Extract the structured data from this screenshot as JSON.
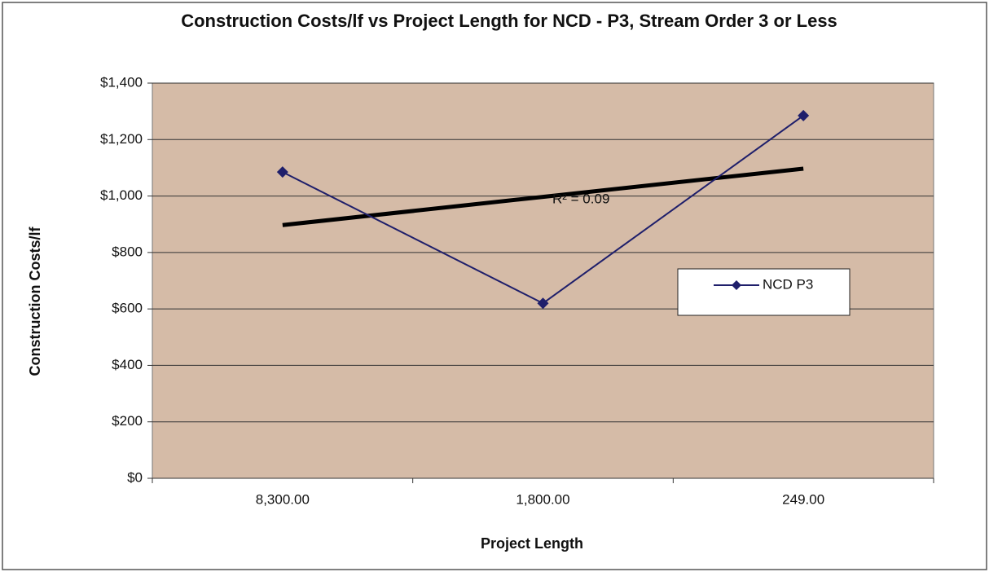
{
  "chart_data": {
    "type": "line",
    "title": "Construction Costs/lf vs Project Length for NCD - P3, Stream Order 3 or Less",
    "x_label": "Project Length",
    "y_label": "Construction Costs/lf",
    "categories": [
      "8,300.00",
      "1,800.00",
      "249.00"
    ],
    "series": [
      {
        "name": "NCD P3",
        "color": "#1f1f6b",
        "values": [
          1085,
          620,
          1285
        ]
      }
    ],
    "trendline": {
      "color": "#000000",
      "values": [
        897,
        997,
        1097
      ]
    },
    "annotation": "R² = 0.09",
    "ylim": [
      0,
      1400
    ],
    "yticks": [
      {
        "value": 0,
        "label": "$0"
      },
      {
        "value": 200,
        "label": "$200"
      },
      {
        "value": 400,
        "label": "$400"
      },
      {
        "value": 600,
        "label": "$600"
      },
      {
        "value": 800,
        "label": "$800"
      },
      {
        "value": 1000,
        "label": "$1,000"
      },
      {
        "value": 1200,
        "label": "$1,200"
      },
      {
        "value": 1400,
        "label": "$1,400"
      }
    ],
    "grid": true,
    "plot_background": "#d5bba7",
    "legend": "right"
  }
}
